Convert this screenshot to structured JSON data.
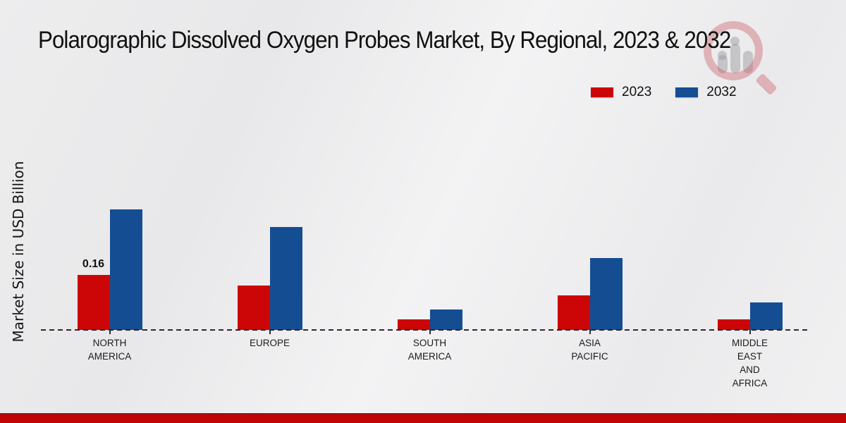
{
  "chart_data": {
    "type": "bar",
    "title": "Polarographic Dissolved Oxygen Probes Market, By Regional, 2023 & 2032",
    "xlabel": "",
    "ylabel": "Market Size in USD Billion",
    "categories": [
      "NORTH AMERICA",
      "EUROPE",
      "SOUTH AMERICA",
      "ASIA PACIFIC",
      "MIDDLE EAST AND AFRICA"
    ],
    "series": [
      {
        "name": "2023",
        "color": "#cc0606",
        "values": [
          0.16,
          0.13,
          0.03,
          0.1,
          0.03
        ]
      },
      {
        "name": "2032",
        "color": "#154d92",
        "values": [
          0.35,
          0.3,
          0.06,
          0.21,
          0.08
        ]
      }
    ],
    "data_labels": [
      {
        "series_index": 0,
        "category_index": 0,
        "text": "0.16"
      }
    ],
    "ylim": [
      0,
      0.4
    ],
    "grid": false,
    "legend_position": "top-right",
    "baseline_style": "dashed",
    "accent_footer_color": "#c10505"
  }
}
